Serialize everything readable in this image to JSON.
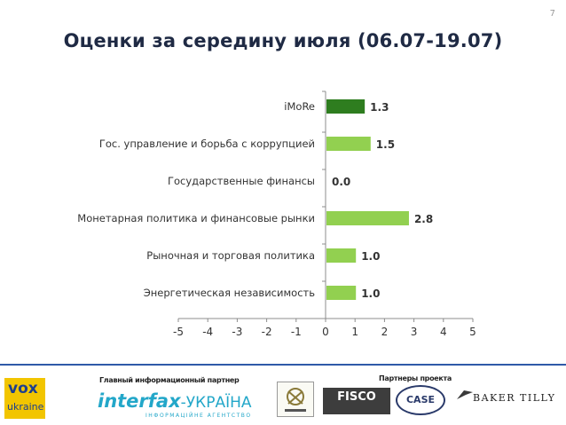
{
  "page_number": "7",
  "title": "Оценки за середину июля (06.07-19.07)",
  "chart_data": {
    "type": "bar",
    "orientation": "horizontal",
    "categories": [
      "iMoRe",
      "Гос. управление и борьба с коррупцией",
      "Государственные финансы",
      "Монетарная политика и финансовые рынки",
      "Рыночная и торговая политика",
      "Энергетическая независимость"
    ],
    "values": [
      1.3,
      1.5,
      0.0,
      2.8,
      1.0,
      1.0
    ],
    "value_labels": [
      "1.3",
      "1.5",
      "0.0",
      "2.8",
      "1.0",
      "1.0"
    ],
    "xlim": [
      -5,
      5
    ],
    "xticks": [
      "-5",
      "-4",
      "-3",
      "-2",
      "-1",
      "0",
      "1",
      "2",
      "3",
      "4",
      "5"
    ],
    "bar_colors": [
      "#2e7d1f",
      "#92d050",
      "#92d050",
      "#92d050",
      "#92d050",
      "#92d050"
    ],
    "grid": false
  },
  "footer": {
    "main_partner_label": "Главный информационный партнер",
    "partners_label": "Партнеры проекта",
    "vox_logo": {
      "line1": "vox",
      "line2": "ukraine"
    },
    "interfax_logo": {
      "word1": "interfax",
      "word2": "-УКРАЇНА",
      "tagline": "ІНФОРМАЦІЙНЕ АГЕНТСТВО"
    },
    "fisco_logo": "FISCO",
    "case_logo": "CASE",
    "baker_tilly_logo": "BAKER TILLY"
  }
}
